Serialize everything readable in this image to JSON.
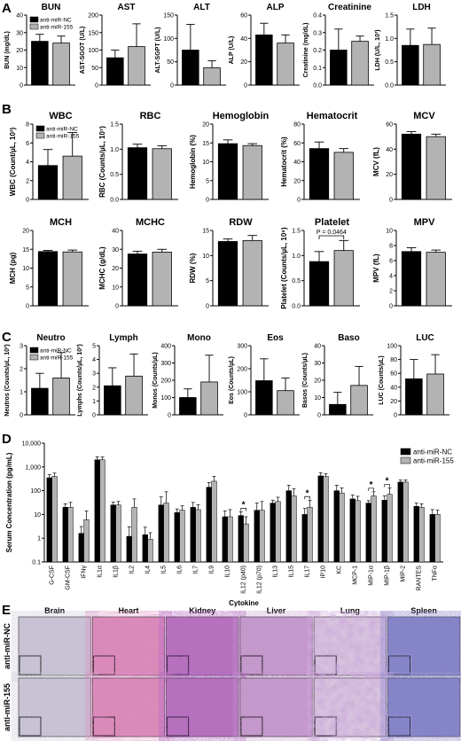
{
  "colors": {
    "nc": "#000000",
    "m155": "#b3b3b3",
    "axis": "#000000"
  },
  "panels": {
    "A": {
      "label": "A"
    },
    "B": {
      "label": "B"
    },
    "C": {
      "label": "C"
    },
    "D": {
      "label": "D"
    },
    "E": {
      "label": "E"
    }
  },
  "chart_data": [
    {
      "type": "bar",
      "id": "bun",
      "title": "BUN",
      "ylabel": "BUN (mg/dL)",
      "ylim": [
        0,
        40
      ],
      "yticks": [
        "0",
        "10",
        "20",
        "30",
        "40"
      ],
      "series": [
        {
          "name": "anti-miR-NC",
          "values": [
            25
          ],
          "errors": [
            4
          ]
        },
        {
          "name": "anti-miR-155",
          "values": [
            24
          ],
          "errors": [
            4
          ]
        }
      ],
      "legend": [
        "anti-miR-NC",
        "anti-miR-155"
      ]
    },
    {
      "type": "bar",
      "id": "ast",
      "title": "AST",
      "ylabel": "AST-SGOT (U/L)",
      "ylim": [
        0,
        200
      ],
      "yticks": [
        "0",
        "50",
        "100",
        "150",
        "200"
      ],
      "series": [
        {
          "values": [
            78
          ],
          "errors": [
            22
          ]
        },
        {
          "values": [
            110
          ],
          "errors": [
            65
          ]
        }
      ]
    },
    {
      "type": "bar",
      "id": "alt",
      "title": "ALT",
      "ylabel": "ALT-SGPT (U/L)",
      "ylim": [
        0,
        150
      ],
      "yticks": [
        "0",
        "50",
        "100",
        "150"
      ],
      "series": [
        {
          "values": [
            75
          ],
          "errors": [
            55
          ]
        },
        {
          "values": [
            37
          ],
          "errors": [
            15
          ]
        }
      ]
    },
    {
      "type": "bar",
      "id": "alp",
      "title": "ALP",
      "ylabel": "ALP (U/L)",
      "ylim": [
        0,
        60
      ],
      "yticks": [
        "0",
        "20",
        "40",
        "60"
      ],
      "series": [
        {
          "values": [
            43
          ],
          "errors": [
            10
          ]
        },
        {
          "values": [
            36
          ],
          "errors": [
            7
          ]
        }
      ]
    },
    {
      "type": "bar",
      "id": "creat",
      "title": "Creatinine",
      "ylabel": "Creatinine (mg/dL)",
      "ylim": [
        0,
        0.4
      ],
      "yticks": [
        "0.0",
        "0.1",
        "0.2",
        "0.3",
        "0.4"
      ],
      "series": [
        {
          "values": [
            0.2
          ],
          "errors": [
            0.12
          ]
        },
        {
          "values": [
            0.25
          ],
          "errors": [
            0.03
          ]
        }
      ]
    },
    {
      "type": "bar",
      "id": "ldh",
      "title": "LDH",
      "ylabel": "LDH (U/L, 10³)",
      "ylim": [
        0,
        1.5
      ],
      "yticks": [
        "0.0",
        "0.5",
        "1.0",
        "1.5"
      ],
      "series": [
        {
          "values": [
            0.85
          ],
          "errors": [
            0.35
          ]
        },
        {
          "values": [
            0.87
          ],
          "errors": [
            0.35
          ]
        }
      ]
    },
    {
      "type": "bar",
      "id": "wbc",
      "title": "WBC",
      "ylabel": "WBC (Count/µL, 10³)",
      "ylim": [
        0,
        8
      ],
      "yticks": [
        "0",
        "2",
        "4",
        "6",
        "8"
      ],
      "series": [
        {
          "name": "anti-miR-NC",
          "values": [
            3.6
          ],
          "errors": [
            1.7
          ]
        },
        {
          "name": "anti-miR-155",
          "values": [
            4.6
          ],
          "errors": [
            2.5
          ]
        }
      ],
      "legend": [
        "anti-miR-NC",
        "anti-miR-155"
      ]
    },
    {
      "type": "bar",
      "id": "rbc",
      "title": "RBC",
      "ylabel": "RBC (Counts/µL, 10⁷)",
      "ylim": [
        0,
        1.5
      ],
      "yticks": [
        "0.0",
        "0.5",
        "1.0",
        "1.5"
      ],
      "series": [
        {
          "values": [
            1.03
          ],
          "errors": [
            0.07
          ]
        },
        {
          "values": [
            1.01
          ],
          "errors": [
            0.06
          ]
        }
      ]
    },
    {
      "type": "bar",
      "id": "hgb",
      "title": "Hemoglobin",
      "ylabel": "Hemoglobin (%)",
      "ylim": [
        0,
        20
      ],
      "yticks": [
        "0",
        "5",
        "10",
        "15",
        "20"
      ],
      "series": [
        {
          "values": [
            14.8
          ],
          "errors": [
            1
          ]
        },
        {
          "values": [
            14.3
          ],
          "errors": [
            0.5
          ]
        }
      ]
    },
    {
      "type": "bar",
      "id": "hct",
      "title": "Hematocrit",
      "ylabel": "Hematocrit (%)",
      "ylim": [
        0,
        80
      ],
      "yticks": [
        "0",
        "20",
        "40",
        "60",
        "80"
      ],
      "series": [
        {
          "values": [
            54
          ],
          "errors": [
            7
          ]
        },
        {
          "values": [
            50
          ],
          "errors": [
            4
          ]
        }
      ]
    },
    {
      "type": "bar",
      "id": "mcv",
      "title": "MCV",
      "ylabel": "MCV (fL)",
      "ylim": [
        0,
        60
      ],
      "yticks": [
        "0",
        "20",
        "40",
        "60"
      ],
      "series": [
        {
          "values": [
            52
          ],
          "errors": [
            2
          ]
        },
        {
          "values": [
            50
          ],
          "errors": [
            2
          ]
        }
      ]
    },
    {
      "type": "bar",
      "id": "mch",
      "title": "MCH",
      "ylabel": "MCH (pg)",
      "ylim": [
        0,
        20
      ],
      "yticks": [
        "0",
        "5",
        "10",
        "15",
        "20"
      ],
      "series": [
        {
          "values": [
            14.4
          ],
          "errors": [
            0.3
          ]
        },
        {
          "values": [
            14.3
          ],
          "errors": [
            0.5
          ]
        }
      ]
    },
    {
      "type": "bar",
      "id": "mchc",
      "title": "MCHC",
      "ylabel": "MCHC (g/dL)",
      "ylim": [
        0,
        40
      ],
      "yticks": [
        "0",
        "10",
        "20",
        "30",
        "40"
      ],
      "series": [
        {
          "values": [
            27.5
          ],
          "errors": [
            1.5
          ]
        },
        {
          "values": [
            28.5
          ],
          "errors": [
            1.5
          ]
        }
      ]
    },
    {
      "type": "bar",
      "id": "rdw",
      "title": "RDW",
      "ylabel": "RDW (%)",
      "ylim": [
        0,
        15
      ],
      "yticks": [
        "0",
        "5",
        "10",
        "15"
      ],
      "series": [
        {
          "values": [
            12.8
          ],
          "errors": [
            0.5
          ]
        },
        {
          "values": [
            13
          ],
          "errors": [
            1
          ]
        }
      ]
    },
    {
      "type": "bar",
      "id": "plt",
      "title": "Platelet",
      "ylabel": "Platelet (Counts/µL, 10⁶)",
      "ylim": [
        0,
        1.5
      ],
      "yticks": [
        "0.0",
        "0.5",
        "1.0",
        "1.5"
      ],
      "series": [
        {
          "values": [
            0.88
          ],
          "errors": [
            0.2
          ]
        },
        {
          "values": [
            1.1
          ],
          "errors": [
            0.2
          ]
        }
      ],
      "annotation": "P = 0.0464"
    },
    {
      "type": "bar",
      "id": "mpv",
      "title": "MPV",
      "ylabel": "MPV (fL)",
      "ylim": [
        0,
        10
      ],
      "yticks": [
        "0",
        "2",
        "4",
        "6",
        "8",
        "10"
      ],
      "series": [
        {
          "values": [
            7.2
          ],
          "errors": [
            0.5
          ]
        },
        {
          "values": [
            7.1
          ],
          "errors": [
            0.3
          ]
        }
      ]
    },
    {
      "type": "bar",
      "id": "neutro",
      "title": "Neutro",
      "ylabel": "Neutros (Counts/µL, 10³)",
      "ylim": [
        0,
        3
      ],
      "yticks": [
        "0",
        "1",
        "2",
        "3"
      ],
      "series": [
        {
          "name": "anti-miR-NC",
          "values": [
            1.15
          ],
          "errors": [
            0.65
          ]
        },
        {
          "name": "anti-miR-155",
          "values": [
            1.6
          ],
          "errors": [
            1.1
          ]
        }
      ],
      "legend": [
        "anti-miR-NC",
        "anti-miR-155"
      ]
    },
    {
      "type": "bar",
      "id": "lymph",
      "title": "Lymph",
      "ylabel": "Lymphs (Counts/µL, 10³)",
      "ylim": [
        0,
        5
      ],
      "yticks": [
        "0",
        "1",
        "2",
        "3",
        "4",
        "5"
      ],
      "series": [
        {
          "values": [
            2.1
          ],
          "errors": [
            1.3
          ]
        },
        {
          "values": [
            2.8
          ],
          "errors": [
            1.6
          ]
        }
      ]
    },
    {
      "type": "bar",
      "id": "mono",
      "title": "Mono",
      "ylabel": "Monos (Counts/µL)",
      "ylim": [
        0,
        400
      ],
      "yticks": [
        "0",
        "100",
        "200",
        "300",
        "400"
      ],
      "series": [
        {
          "values": [
            100
          ],
          "errors": [
            50
          ]
        },
        {
          "values": [
            190
          ],
          "errors": [
            155
          ]
        }
      ]
    },
    {
      "type": "bar",
      "id": "eos",
      "title": "Eos",
      "ylabel": "Eos (Counts/µL)",
      "ylim": [
        0,
        300
      ],
      "yticks": [
        "0",
        "100",
        "200",
        "300"
      ],
      "series": [
        {
          "values": [
            148
          ],
          "errors": [
            95
          ]
        },
        {
          "values": [
            105
          ],
          "errors": [
            55
          ]
        }
      ]
    },
    {
      "type": "bar",
      "id": "baso",
      "title": "Baso",
      "ylabel": "Basos (Counts/µL)",
      "ylim": [
        0,
        40
      ],
      "yticks": [
        "0",
        "10",
        "20",
        "30",
        "40"
      ],
      "series": [
        {
          "values": [
            6
          ],
          "errors": [
            7
          ]
        },
        {
          "values": [
            17
          ],
          "errors": [
            11
          ]
        }
      ]
    },
    {
      "type": "bar",
      "id": "luc",
      "title": "LUC",
      "ylabel": "LUC (Counts/µL)",
      "ylim": [
        0,
        100
      ],
      "yticks": [
        "0",
        "20",
        "40",
        "60",
        "80",
        "100"
      ],
      "series": [
        {
          "values": [
            52
          ],
          "errors": [
            28
          ]
        },
        {
          "values": [
            59
          ],
          "errors": [
            28
          ]
        }
      ]
    },
    {
      "type": "bar",
      "id": "cytokine",
      "title": "",
      "xlabel": "Cytokine",
      "ylabel": "Serum Concentration (pg/mL)",
      "yscale": "log",
      "ylim": [
        0.1,
        10000
      ],
      "yticks": [
        "0.1",
        "1",
        "10",
        "100",
        "1,000",
        "10,000"
      ],
      "categories": [
        "G-CSF",
        "GM-CSF",
        "IFNγ",
        "IL1α",
        "IL1β",
        "IL2",
        "IL4",
        "IL5",
        "IL6",
        "IL7",
        "IL9",
        "IL10",
        "IL12 (p40)",
        "IL12 (p70)",
        "IL13",
        "IL15",
        "IL17",
        "IP10",
        "KC",
        "MCP-1",
        "MIP-1α",
        "MIP-1β",
        "MIP-2",
        "RANTES",
        "TNFα"
      ],
      "series": [
        {
          "name": "anti-miR-NC",
          "values": [
            350,
            20,
            1.6,
            2000,
            25,
            1.2,
            1.4,
            25,
            12,
            20,
            140,
            8,
            9,
            15,
            30,
            100,
            10,
            420,
            100,
            45,
            30,
            40,
            230,
            22,
            10
          ],
          "errors": [
            120,
            8,
            1.5,
            700,
            8,
            1.8,
            1.5,
            30,
            5,
            12,
            80,
            6,
            4,
            15,
            10,
            70,
            8,
            150,
            70,
            20,
            8,
            20,
            50,
            8,
            6
          ]
        },
        {
          "name": "anti-miR-155",
          "values": [
            400,
            20,
            6,
            2000,
            25,
            20,
            0.9,
            30,
            15,
            16,
            250,
            8,
            4,
            15,
            35,
            60,
            20,
            400,
            80,
            38,
            60,
            70,
            230,
            20,
            10
          ],
          "errors": [
            150,
            12,
            8,
            600,
            10,
            25,
            0.8,
            60,
            8,
            10,
            150,
            8,
            4,
            20,
            18,
            60,
            20,
            120,
            50,
            20,
            30,
            60,
            50,
            8,
            5
          ]
        }
      ],
      "significance": [
        "IL12 (p40)",
        "IL17",
        "MIP-1α",
        "MIP-1β"
      ],
      "sig_mark": "*",
      "legend": [
        "anti-miR-NC",
        "anti-miR-155"
      ]
    }
  ],
  "histology": {
    "columns": [
      "Brain",
      "Heart",
      "Kidney",
      "Liver",
      "Lung",
      "Spleen"
    ],
    "rows": [
      "anti-miR-NC",
      "anti-miR-155"
    ]
  }
}
